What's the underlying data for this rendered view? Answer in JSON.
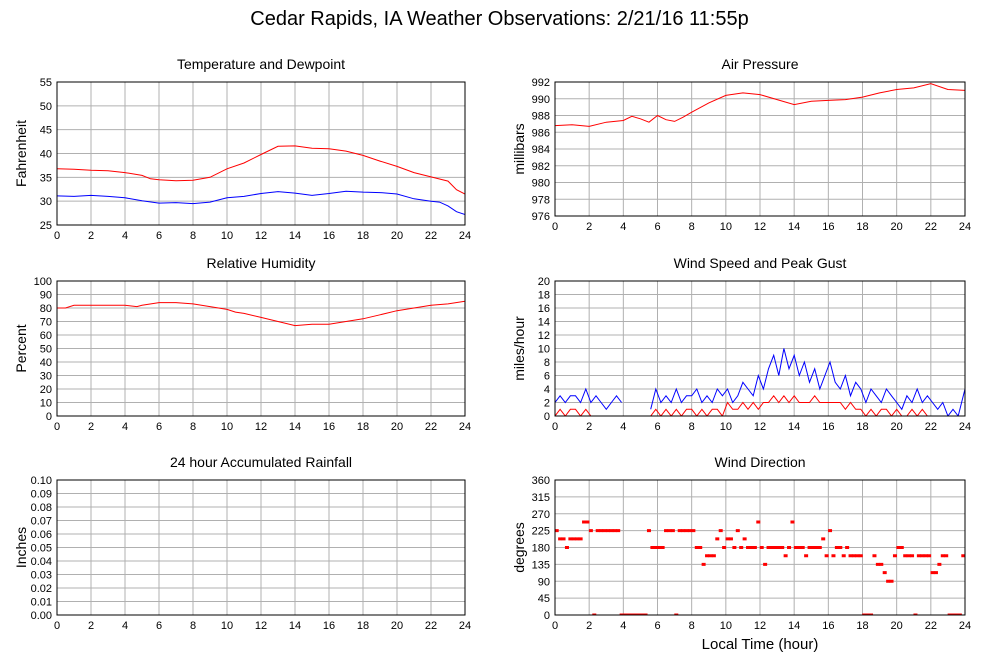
{
  "page": {
    "title": "Cedar Rapids, IA Weather Observations: 2/21/16 11:55p",
    "x_axis_label": "Local Time (hour)"
  },
  "colors": {
    "red": "#ff0000",
    "blue": "#0000ff",
    "grid": "#b0b0b0",
    "frame": "#000000"
  },
  "chart_data": [
    {
      "id": "temperature",
      "type": "line",
      "title": "Temperature and Dewpoint",
      "xlabel": "",
      "ylabel": "Fahrenheit",
      "xlim": [
        0,
        24
      ],
      "ylim": [
        25,
        55
      ],
      "xticks": [
        0,
        2,
        4,
        6,
        8,
        10,
        12,
        14,
        16,
        18,
        20,
        22,
        24
      ],
      "yticks": [
        25,
        30,
        35,
        40,
        45,
        50,
        55
      ],
      "ytick_decimals": 0,
      "grid": true,
      "series": [
        {
          "color": "red",
          "x": [
            0,
            1,
            2,
            3,
            4,
            5,
            5.5,
            6,
            7,
            8,
            9,
            10,
            11,
            12,
            13,
            14,
            15,
            16,
            17,
            18,
            19,
            20,
            21,
            22,
            23,
            23.5,
            24
          ],
          "y": [
            36.8,
            36.7,
            36.5,
            36.4,
            36.0,
            35.4,
            34.7,
            34.5,
            34.3,
            34.4,
            35.0,
            36.8,
            38.0,
            39.8,
            41.5,
            41.6,
            41.1,
            41.0,
            40.5,
            39.6,
            38.4,
            37.3,
            36.0,
            35.1,
            34.2,
            32.4,
            31.5
          ]
        },
        {
          "color": "blue",
          "x": [
            0,
            1,
            2,
            3,
            4,
            5,
            6,
            7,
            8,
            9,
            10,
            11,
            12,
            13,
            14,
            15,
            16,
            17,
            18,
            19,
            20,
            21,
            22,
            22.5,
            23,
            23.5,
            24
          ],
          "y": [
            31.1,
            31.0,
            31.2,
            31.0,
            30.7,
            30.1,
            29.6,
            29.7,
            29.5,
            29.8,
            30.7,
            31.0,
            31.6,
            32.0,
            31.7,
            31.2,
            31.6,
            32.1,
            31.9,
            31.8,
            31.5,
            30.5,
            30.0,
            29.8,
            29.0,
            27.8,
            27.2
          ]
        }
      ]
    },
    {
      "id": "pressure",
      "type": "line",
      "title": "Air Pressure",
      "xlabel": "",
      "ylabel": "millibars",
      "xlim": [
        0,
        24
      ],
      "ylim": [
        976,
        992
      ],
      "xticks": [
        0,
        2,
        4,
        6,
        8,
        10,
        12,
        14,
        16,
        18,
        20,
        22,
        24
      ],
      "yticks": [
        976,
        978,
        980,
        982,
        984,
        986,
        988,
        990,
        992
      ],
      "ytick_decimals": 0,
      "grid": true,
      "series": [
        {
          "color": "red",
          "x": [
            0,
            1,
            2,
            3,
            4,
            4.5,
            5,
            5.5,
            6,
            6.5,
            7,
            7.5,
            8,
            9,
            10,
            11,
            12,
            13,
            14,
            15,
            16,
            17,
            18,
            19,
            20,
            21,
            22,
            23,
            24
          ],
          "y": [
            986.8,
            986.9,
            986.7,
            987.2,
            987.4,
            987.9,
            987.6,
            987.2,
            988.0,
            987.5,
            987.3,
            987.8,
            988.4,
            989.5,
            990.4,
            990.7,
            990.5,
            989.9,
            989.3,
            989.7,
            989.8,
            989.9,
            990.2,
            990.7,
            991.1,
            991.3,
            991.8,
            991.1,
            991.0
          ]
        }
      ]
    },
    {
      "id": "humidity",
      "type": "line",
      "title": "Relative Humidity",
      "xlabel": "",
      "ylabel": "Percent",
      "xlim": [
        0,
        24
      ],
      "ylim": [
        0,
        100
      ],
      "xticks": [
        0,
        2,
        4,
        6,
        8,
        10,
        12,
        14,
        16,
        18,
        20,
        22,
        24
      ],
      "yticks": [
        0,
        10,
        20,
        30,
        40,
        50,
        60,
        70,
        80,
        90,
        100
      ],
      "ytick_decimals": 0,
      "grid": true,
      "series": [
        {
          "color": "red",
          "x": [
            0,
            0.5,
            1,
            2,
            3,
            4,
            4.7,
            5,
            6,
            7,
            8,
            9,
            10,
            10.5,
            11,
            12,
            13,
            14,
            15,
            16,
            17,
            18,
            19,
            20,
            21,
            22,
            23,
            24
          ],
          "y": [
            80,
            80,
            82,
            82,
            82,
            82,
            81,
            82,
            84,
            84,
            83,
            81,
            79,
            77,
            76,
            73,
            70,
            67,
            68,
            68,
            70,
            72,
            75,
            78,
            80,
            82,
            83,
            85
          ]
        }
      ]
    },
    {
      "id": "wind_speed",
      "type": "line",
      "title": "Wind Speed and Peak Gust",
      "xlabel": "",
      "ylabel": "miles/hour",
      "xlim": [
        0,
        24
      ],
      "ylim": [
        0,
        20
      ],
      "xticks": [
        0,
        2,
        4,
        6,
        8,
        10,
        12,
        14,
        16,
        18,
        20,
        22,
        24
      ],
      "yticks": [
        0,
        2,
        4,
        6,
        8,
        10,
        12,
        14,
        16,
        18,
        20
      ],
      "ytick_decimals": 0,
      "grid": true,
      "series": [
        {
          "color": "blue",
          "x": [
            0,
            0.3,
            0.6,
            0.9,
            1.2,
            1.5,
            1.8,
            2.1,
            2.4,
            2.7,
            3.0,
            3.3,
            3.6,
            3.9,
            5.6,
            5.9,
            6.2,
            6.5,
            6.8,
            7.1,
            7.4,
            7.7,
            8.0,
            8.3,
            8.6,
            8.9,
            9.2,
            9.5,
            9.8,
            10.1,
            10.4,
            10.7,
            11.0,
            11.3,
            11.6,
            11.9,
            12.2,
            12.5,
            12.8,
            13.1,
            13.4,
            13.7,
            14.0,
            14.3,
            14.6,
            14.9,
            15.2,
            15.5,
            15.8,
            16.1,
            16.4,
            16.7,
            17.0,
            17.3,
            17.6,
            17.9,
            18.2,
            18.5,
            18.8,
            19.1,
            19.4,
            19.7,
            20.0,
            20.3,
            20.6,
            20.9,
            21.2,
            21.5,
            21.8,
            22.1,
            22.4,
            22.7,
            23.0,
            23.3,
            23.6,
            24.0
          ],
          "y": [
            2,
            3,
            2,
            3,
            3,
            2,
            4,
            2,
            3,
            2,
            1,
            2,
            3,
            2,
            1,
            4,
            2,
            3,
            2,
            4,
            2,
            3,
            3,
            4,
            2,
            3,
            2,
            4,
            3,
            4,
            2,
            3,
            5,
            4,
            3,
            6,
            4,
            7,
            9,
            6,
            10,
            7,
            9,
            6,
            8,
            5,
            7,
            4,
            6,
            8,
            5,
            4,
            6,
            3,
            5,
            4,
            2,
            4,
            3,
            2,
            4,
            3,
            2,
            1,
            3,
            2,
            4,
            2,
            3,
            2,
            1,
            2,
            0,
            1,
            0,
            4
          ]
        },
        {
          "color": "red",
          "x": [
            0,
            0.3,
            0.6,
            0.9,
            1.2,
            1.5,
            1.8,
            2.1,
            5.6,
            5.9,
            6.2,
            6.5,
            6.8,
            7.1,
            7.4,
            7.7,
            8.0,
            8.3,
            8.6,
            8.9,
            9.2,
            9.5,
            9.8,
            10.1,
            10.4,
            10.7,
            11.0,
            11.3,
            11.6,
            11.9,
            12.2,
            12.5,
            12.8,
            13.1,
            13.4,
            13.7,
            14.0,
            14.3,
            14.6,
            14.9,
            15.2,
            15.5,
            15.8,
            16.1,
            16.4,
            16.7,
            17.0,
            17.3,
            17.6,
            17.9,
            18.2,
            18.5,
            18.8,
            19.1,
            19.4,
            19.7,
            20.0,
            20.3,
            20.6,
            20.9,
            21.2,
            21.5,
            21.8
          ],
          "y": [
            0,
            1,
            0,
            1,
            1,
            0,
            1,
            0,
            0,
            1,
            0,
            1,
            0,
            1,
            0,
            1,
            1,
            0,
            1,
            0,
            1,
            1,
            0,
            2,
            1,
            1,
            2,
            1,
            2,
            1,
            2,
            2,
            3,
            2,
            3,
            2,
            3,
            2,
            2,
            2,
            3,
            2,
            2,
            2,
            2,
            2,
            1,
            2,
            1,
            1,
            0,
            1,
            0,
            1,
            1,
            0,
            1,
            0,
            0,
            1,
            0,
            1,
            0
          ]
        }
      ]
    },
    {
      "id": "rainfall",
      "type": "line",
      "title": "24 hour Accumulated Rainfall",
      "xlabel": "",
      "ylabel": "Inches",
      "xlim": [
        0,
        24
      ],
      "ylim": [
        0,
        0.1
      ],
      "xticks": [
        0,
        2,
        4,
        6,
        8,
        10,
        12,
        14,
        16,
        18,
        20,
        22,
        24
      ],
      "yticks": [
        0,
        0.01,
        0.02,
        0.03,
        0.04,
        0.05,
        0.06,
        0.07,
        0.08,
        0.09,
        0.1
      ],
      "ytick_decimals": 2,
      "grid": true,
      "series": [
        {
          "color": "red",
          "x": [
            0,
            24
          ],
          "y": [
            0,
            0
          ]
        }
      ]
    },
    {
      "id": "wind_direction",
      "type": "scatter",
      "title": "Wind Direction",
      "xlabel": "Local Time (hour)",
      "ylabel": "degrees",
      "xlim": [
        0,
        24
      ],
      "ylim": [
        0,
        360
      ],
      "xticks": [
        0,
        2,
        4,
        6,
        8,
        10,
        12,
        14,
        16,
        18,
        20,
        22,
        24
      ],
      "yticks": [
        0,
        45,
        90,
        135,
        180,
        225,
        270,
        315,
        360
      ],
      "ytick_decimals": 0,
      "grid": true,
      "series": [
        {
          "color": "red",
          "x": [
            0.1,
            0.3,
            0.5,
            0.7,
            0.9,
            1.1,
            1.3,
            1.5,
            1.7,
            1.9,
            2.1,
            2.3,
            2.5,
            2.7,
            2.9,
            3.1,
            3.3,
            3.5,
            3.7,
            3.9,
            4.1,
            4.3,
            4.5,
            4.7,
            4.9,
            5.1,
            5.3,
            5.5,
            5.7,
            5.9,
            6.1,
            6.3,
            6.5,
            6.7,
            6.9,
            7.1,
            7.3,
            7.5,
            7.7,
            7.9,
            8.1,
            8.3,
            8.5,
            8.7,
            8.9,
            9.1,
            9.3,
            9.5,
            9.7,
            9.9,
            10.1,
            10.3,
            10.5,
            10.7,
            10.9,
            11.1,
            11.3,
            11.5,
            11.7,
            11.9,
            12.1,
            12.3,
            12.5,
            12.7,
            12.9,
            13.1,
            13.3,
            13.5,
            13.7,
            13.9,
            14.1,
            14.3,
            14.5,
            14.7,
            14.9,
            15.1,
            15.3,
            15.5,
            15.7,
            15.9,
            16.1,
            16.3,
            16.5,
            16.7,
            16.9,
            17.1,
            17.3,
            17.5,
            17.7,
            17.9,
            18.1,
            18.3,
            18.5,
            18.7,
            18.9,
            19.1,
            19.3,
            19.5,
            19.7,
            19.9,
            20.1,
            20.3,
            20.5,
            20.7,
            20.9,
            21.1,
            21.3,
            21.5,
            21.7,
            21.9,
            22.1,
            22.3,
            22.5,
            22.7,
            22.9,
            23.1,
            23.3,
            23.5,
            23.7,
            23.9
          ],
          "y": [
            225,
            203,
            203,
            180,
            203,
            203,
            203,
            203,
            248,
            248,
            225,
            0,
            225,
            225,
            225,
            225,
            225,
            225,
            225,
            0,
            0,
            0,
            0,
            0,
            0,
            0,
            0,
            225,
            180,
            180,
            180,
            180,
            225,
            225,
            225,
            0,
            225,
            225,
            225,
            225,
            225,
            180,
            180,
            135,
            158,
            158,
            158,
            203,
            225,
            180,
            203,
            203,
            180,
            225,
            180,
            203,
            180,
            180,
            180,
            248,
            180,
            135,
            180,
            180,
            180,
            180,
            180,
            158,
            180,
            248,
            180,
            180,
            180,
            158,
            180,
            180,
            180,
            180,
            203,
            158,
            225,
            158,
            180,
            180,
            158,
            180,
            158,
            158,
            158,
            158,
            0,
            0,
            0,
            158,
            135,
            135,
            113,
            90,
            90,
            158,
            180,
            180,
            158,
            158,
            158,
            0,
            158,
            158,
            158,
            158,
            113,
            113,
            135,
            158,
            158,
            0,
            0,
            0,
            0,
            158
          ]
        }
      ]
    }
  ]
}
